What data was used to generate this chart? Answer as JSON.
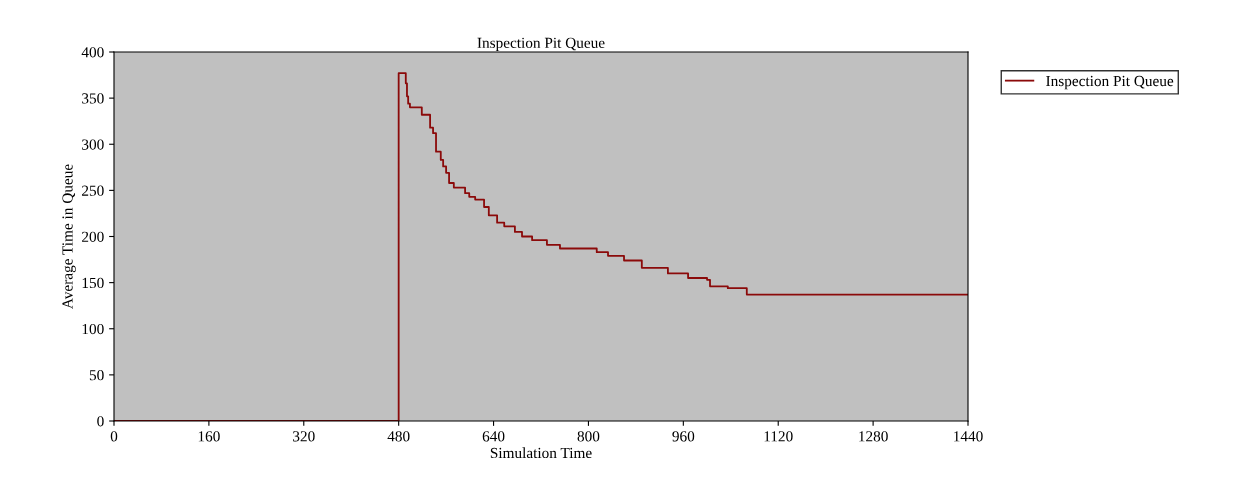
{
  "chart_data": {
    "type": "step",
    "title": "Inspection Pit Queue",
    "xlabel": "Simulation Time",
    "ylabel": "Average Time in Queue",
    "xlim": [
      0,
      1440
    ],
    "xticks": [
      0,
      160,
      320,
      480,
      640,
      800,
      960,
      1120,
      1280,
      1440
    ],
    "ylim": [
      0,
      400
    ],
    "yticks": [
      0,
      50,
      100,
      150,
      200,
      250,
      300,
      350,
      400
    ],
    "grid": false,
    "legend": "right",
    "marker": "none",
    "line_style": "solid",
    "series": [
      {
        "name": "Inspection Pit Queue",
        "color": "#8b0a0a",
        "x": [
          0,
          480,
          480,
          492,
          494,
          496,
          499,
          519,
          533,
          538,
          543,
          551,
          555,
          560,
          565,
          573,
          592,
          599,
          609,
          624,
          632,
          646,
          658,
          676,
          688,
          705,
          730,
          752,
          781,
          814,
          833,
          860,
          890,
          934,
          968,
          1000,
          1005,
          1035,
          1067,
          1440
        ],
        "values": [
          0,
          0,
          377,
          366,
          352,
          344,
          340,
          332,
          318,
          312,
          292,
          283,
          276,
          269,
          258,
          253,
          247,
          243,
          240,
          232,
          223,
          215,
          211,
          205,
          200,
          196,
          191,
          187,
          187,
          183,
          179,
          174,
          166,
          160,
          155,
          153,
          146,
          144,
          137,
          137
        ]
      }
    ]
  }
}
